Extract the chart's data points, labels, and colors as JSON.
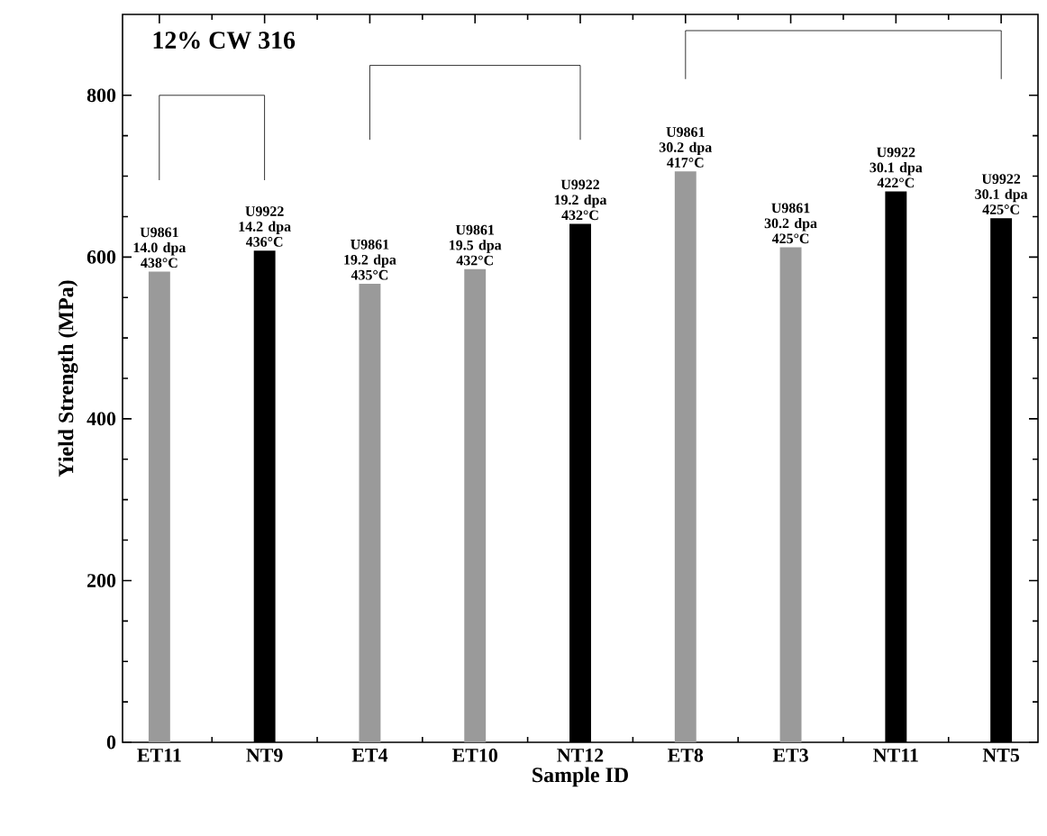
{
  "chart_data": {
    "type": "bar",
    "xlabel": "Sample ID",
    "ylabel": "Yield Strength (MPa)",
    "categories": [
      "ET11",
      "NT9",
      "ET4",
      "ET10",
      "NT12",
      "ET8",
      "ET3",
      "NT11",
      "NT5"
    ],
    "values": [
      582,
      608,
      567,
      585,
      641,
      706,
      612,
      681,
      648
    ],
    "colors": [
      "#9a9a9a",
      "#000000",
      "#9a9a9a",
      "#9a9a9a",
      "#000000",
      "#9a9a9a",
      "#9a9a9a",
      "#000000",
      "#000000"
    ],
    "ylim": [
      0,
      900
    ],
    "yticks": [
      0,
      200,
      400,
      600,
      800
    ],
    "annotations": [
      "12% CW 316",
      "U9861 14.0 dpa 438°C",
      "U9922 14.2 dpa 436°C",
      "U9861 19.2 dpa 435°C",
      "U9861 19.5 dpa 432°C",
      "U9922 19.2 dpa 432°C",
      "U9861 30.2 dpa 417°C",
      "U9861 30.2 dpa 425°C",
      "U9922 30.1 dpa 422°C",
      "U9922 30.1 dpa 425°C"
    ]
  }
}
